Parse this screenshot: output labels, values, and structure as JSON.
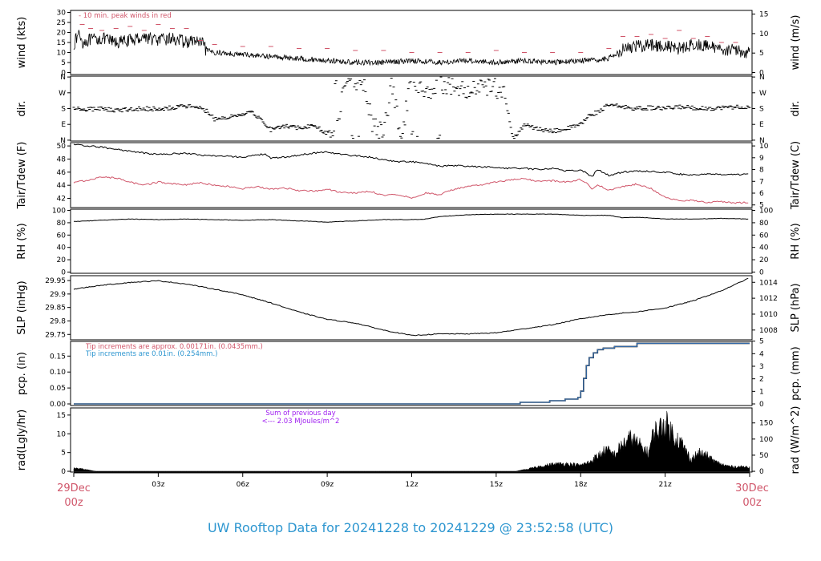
{
  "page": {
    "title": "UW Rooftop Data for 20241228  to  20241229 @ 23:52:58  (UTC)",
    "title_color": "#2d96d0",
    "date_color": "#d0566a"
  },
  "x_axis": {
    "hours": [
      0,
      3,
      6,
      9,
      12,
      15,
      18,
      21,
      24
    ],
    "ticks": [
      "",
      "03z",
      "06z",
      "09z",
      "12z",
      "15z",
      "18z",
      "21z",
      ""
    ],
    "start_date": "29Dec",
    "start_time": "00z",
    "end_date": "30Dec",
    "end_time": "00z"
  },
  "chart_data": [
    {
      "id": "wind",
      "type": "line",
      "left_label": "wind (kts)",
      "right_label": "wind (m/s)",
      "left_ticks": [
        0,
        5,
        10,
        15,
        20,
        25,
        30
      ],
      "right_ticks": [
        0,
        5,
        10,
        15
      ],
      "ylim": [
        -1,
        31
      ],
      "annotation": "- 10 min. peak winds in red",
      "series": [
        {
          "kind": "wind_speed",
          "color": "#000000",
          "x": [
            0,
            0.2,
            0.3,
            0.5,
            1,
            1.5,
            2,
            2.5,
            3,
            3.5,
            4,
            4.3,
            4.6,
            4.7,
            5,
            6,
            7,
            8,
            9,
            10,
            11,
            12,
            13,
            14,
            15,
            16,
            17,
            18,
            18.5,
            19,
            19.5,
            20,
            20.5,
            21,
            21.5,
            22,
            22.5,
            23,
            23.5,
            24
          ],
          "y": [
            14,
            20,
            15,
            16,
            17,
            15,
            16,
            18,
            16,
            17,
            15,
            16,
            14,
            11,
            10,
            9,
            8,
            7,
            6,
            5,
            5,
            6,
            5,
            6,
            5,
            6,
            5,
            6,
            6,
            7,
            12,
            13,
            14,
            13,
            12,
            14,
            13,
            12,
            11,
            10
          ]
        },
        {
          "kind": "peak_gusts",
          "color": "#d0566a",
          "x": [
            0.3,
            0.6,
            1,
            1.5,
            2,
            2.5,
            3,
            3.5,
            4,
            4.5,
            5,
            6,
            7,
            8,
            9,
            10,
            11,
            12,
            13,
            14,
            15,
            16,
            17,
            18,
            19,
            19.5,
            20,
            20.5,
            21,
            21.5,
            22,
            22.5,
            23,
            23.5
          ],
          "y": [
            24,
            22,
            21,
            22,
            23,
            21,
            24,
            22,
            22,
            16,
            14,
            13,
            13,
            12,
            12,
            11,
            11,
            10,
            10,
            10,
            11,
            10,
            10,
            10,
            12,
            18,
            18,
            19,
            17,
            21,
            17,
            18,
            15,
            15
          ]
        }
      ]
    },
    {
      "id": "direction",
      "type": "scatter",
      "left_label": "dir.",
      "right_label": "dir.",
      "left_ticks": [
        "N",
        "E",
        "S",
        "W",
        "N"
      ],
      "right_ticks": [
        "N",
        "E",
        "S",
        "W",
        "N"
      ],
      "ylim": [
        -5,
        365
      ],
      "series": [
        {
          "kind": "wind_direction",
          "color": "#000000",
          "x": [
            0,
            0.5,
            1,
            1.5,
            2,
            2.5,
            3,
            3.5,
            4,
            4.5,
            4.8,
            5,
            5.5,
            6,
            6.3,
            6.5,
            7,
            7.5,
            8,
            8.5,
            9,
            9.3,
            9.6,
            10,
            10.3,
            10.6,
            11,
            11.3,
            11.6,
            12,
            12.5,
            13,
            13.5,
            14,
            14.5,
            15,
            15.3,
            15.6,
            16,
            16.3,
            16.6,
            17,
            17.5,
            18,
            18.3,
            18.6,
            19,
            19.5,
            20,
            20.5,
            21,
            21.5,
            22,
            22.5,
            23,
            23.5,
            24
          ],
          "y": [
            185,
            175,
            180,
            170,
            175,
            180,
            178,
            185,
            195,
            180,
            160,
            120,
            130,
            150,
            165,
            140,
            60,
            80,
            70,
            85,
            40,
            10,
            340,
            350,
            300,
            100,
            20,
            340,
            0,
            355,
            280,
            330,
            300,
            270,
            290,
            300,
            280,
            10,
            90,
            70,
            60,
            50,
            65,
            90,
            140,
            160,
            200,
            190,
            180,
            185,
            180,
            190,
            185,
            180,
            185,
            190,
            185
          ]
        }
      ]
    },
    {
      "id": "temperature",
      "type": "line",
      "left_label": "Tair/Tdew (F)",
      "right_label": "Tair/Tdew (C)",
      "left_ticks": [
        42,
        44,
        46,
        48,
        50
      ],
      "right_ticks": [
        5,
        6,
        7,
        8,
        9,
        10
      ],
      "ylim": [
        40.6,
        50.5
      ],
      "series": [
        {
          "kind": "air_temperature",
          "color": "#000000",
          "x": [
            0,
            0.5,
            1,
            1.5,
            2,
            2.5,
            3,
            3.5,
            4,
            4.5,
            5,
            5.5,
            6,
            6.5,
            6.8,
            7,
            7.5,
            8,
            8.5,
            9,
            9.5,
            10,
            10.5,
            11,
            11.5,
            12,
            12.5,
            13,
            13.5,
            14,
            14.5,
            15,
            15.5,
            16,
            16.5,
            17,
            17.5,
            18,
            18.2,
            18.4,
            18.6,
            19,
            19.5,
            20,
            20.5,
            21,
            21.5,
            22,
            22.5,
            23,
            23.5,
            24
          ],
          "y": [
            50.2,
            50.0,
            49.8,
            49.5,
            49.2,
            48.9,
            48.7,
            48.8,
            48.9,
            48.6,
            48.5,
            48.4,
            48.3,
            48.6,
            48.8,
            48.1,
            48.3,
            48.6,
            48.9,
            49.1,
            48.7,
            48.5,
            48.3,
            47.9,
            47.6,
            47.6,
            47.3,
            46.9,
            47.0,
            46.9,
            46.8,
            46.7,
            46.6,
            46.6,
            46.4,
            46.6,
            46.2,
            46.3,
            45.9,
            45.3,
            46.4,
            45.5,
            46.0,
            46.2,
            46.1,
            46.0,
            45.7,
            45.6,
            45.7,
            45.6,
            45.6,
            45.7
          ]
        },
        {
          "kind": "dew_point",
          "color": "#d0566a",
          "x": [
            0,
            0.5,
            1,
            1.5,
            2,
            2.5,
            3,
            3.5,
            4,
            4.5,
            5,
            5.5,
            6,
            6.5,
            7,
            7.5,
            8,
            8.5,
            9,
            9.5,
            10,
            10.5,
            11,
            11.5,
            12,
            12.5,
            13,
            13.5,
            14,
            14.5,
            15,
            15.5,
            16,
            16.5,
            17,
            17.5,
            18,
            18.2,
            18.4,
            18.6,
            19,
            19.5,
            20,
            20.5,
            21,
            21.5,
            22,
            22.5,
            23,
            23.5,
            24
          ],
          "y": [
            44.4,
            44.8,
            45.3,
            45.1,
            44.5,
            44.0,
            44.5,
            44.2,
            44.1,
            44.4,
            44.0,
            43.8,
            43.5,
            43.8,
            43.4,
            43.6,
            43.2,
            43.1,
            43.4,
            42.9,
            42.8,
            43.1,
            42.5,
            42.6,
            42.1,
            42.8,
            42.6,
            43.4,
            43.8,
            44.1,
            44.5,
            44.8,
            45.0,
            44.6,
            44.7,
            44.5,
            44.9,
            44.3,
            43.5,
            44.1,
            43.2,
            43.8,
            44.2,
            43.5,
            42.2,
            41.6,
            41.7,
            41.4,
            41.5,
            41.3,
            41.4
          ]
        }
      ]
    },
    {
      "id": "humidity",
      "type": "line",
      "left_label": "RH (%)",
      "right_label": "RH (%)",
      "left_ticks": [
        0,
        20,
        40,
        60,
        80,
        100
      ],
      "right_ticks": [
        0,
        20,
        40,
        60,
        80,
        100
      ],
      "ylim": [
        -2,
        102
      ],
      "series": [
        {
          "kind": "relative_humidity",
          "color": "#000000",
          "x": [
            0,
            1,
            2,
            3,
            4,
            5,
            6,
            7,
            8,
            9,
            10,
            11,
            12,
            12.5,
            13,
            14,
            15,
            16,
            17,
            18,
            19,
            19.5,
            20,
            21,
            22,
            23,
            24
          ],
          "y": [
            82,
            84,
            86,
            85,
            86,
            85,
            84,
            85,
            83,
            81,
            83,
            85,
            85,
            86,
            90,
            93,
            94,
            94,
            94,
            92,
            92,
            88,
            89,
            86,
            86,
            87,
            86
          ]
        }
      ]
    },
    {
      "id": "pressure",
      "type": "line",
      "left_label": "SLP (inHg)",
      "right_label": "SLP (hPa)",
      "left_ticks": [
        29.75,
        29.8,
        29.85,
        29.9,
        29.95
      ],
      "right_ticks": [
        1008,
        1010,
        1012,
        1014
      ],
      "ylim": [
        29.73,
        29.968
      ],
      "series": [
        {
          "kind": "sea_level_pressure",
          "color": "#000000",
          "x": [
            0,
            1,
            2,
            3,
            4,
            5,
            6,
            7,
            8,
            9,
            10,
            11,
            12,
            13,
            14,
            15,
            16,
            17,
            18,
            19,
            20,
            21,
            22,
            23,
            24
          ],
          "y": [
            29.918,
            29.933,
            29.943,
            29.949,
            29.937,
            29.918,
            29.897,
            29.867,
            29.833,
            29.806,
            29.792,
            29.766,
            29.746,
            29.752,
            29.752,
            29.756,
            29.771,
            29.786,
            29.808,
            29.824,
            29.834,
            29.848,
            29.875,
            29.912,
            29.96
          ]
        }
      ]
    },
    {
      "id": "precipitation",
      "type": "line",
      "left_label": "pcp. (in)",
      "right_label": "pcp. (mm)",
      "left_ticks": [
        0.0,
        0.05,
        0.1,
        0.15
      ],
      "right_ticks": [
        0,
        1,
        2,
        3,
        4,
        5
      ],
      "ylim": [
        -0.005,
        0.196
      ],
      "annotations": [
        "Tip increments are approx. 0.00171in. (0.0435mm.)",
        "Tip increments are 0.01in. (0.254mm.)"
      ],
      "annotation_colors": [
        "#d0566a",
        "#2d96d0"
      ],
      "series": [
        {
          "kind": "accumulation_black",
          "color": "#000000",
          "x": [
            0,
            15.8,
            15.85,
            16.9,
            17.45,
            17.9,
            18,
            18.1,
            18.2,
            18.3,
            18.45,
            18.6,
            18.8,
            19.2,
            20,
            24
          ],
          "y": [
            0,
            0,
            0.005,
            0.01,
            0.015,
            0.02,
            0.04,
            0.08,
            0.12,
            0.145,
            0.16,
            0.17,
            0.175,
            0.18,
            0.19,
            0.19
          ]
        },
        {
          "kind": "accumulation_blue",
          "color": "#3a78c0",
          "x": [
            0,
            15.8,
            15.85,
            16.9,
            17.45,
            17.9,
            18,
            18.1,
            18.2,
            18.3,
            18.45,
            18.6,
            18.8,
            19.2,
            20,
            24
          ],
          "y": [
            0,
            0,
            0.005,
            0.01,
            0.015,
            0.02,
            0.04,
            0.08,
            0.12,
            0.145,
            0.16,
            0.17,
            0.175,
            0.18,
            0.19,
            0.19
          ]
        }
      ]
    },
    {
      "id": "radiation",
      "type": "area",
      "left_label": "rad(Lgly/hr)",
      "right_label": "rad (W/m^2)",
      "left_ticks": [
        0,
        5,
        10,
        15
      ],
      "right_ticks": [
        0,
        50,
        100,
        150
      ],
      "ylim": [
        -0.2,
        16.9
      ],
      "annotation_lines": [
        "Sum of previous day",
        "<--- 2.03 MJoules/m^2"
      ],
      "annotation_color": "#a020f0",
      "series": [
        {
          "kind": "solar_radiation",
          "color": "#000000",
          "x": [
            0,
            0.3,
            0.5,
            0.7,
            0.8,
            15.7,
            16,
            16.5,
            17,
            17.5,
            18,
            18.3,
            18.6,
            18.9,
            19.2,
            19.5,
            19.8,
            20.1,
            20.4,
            20.6,
            20.8,
            21,
            21.1,
            21.3,
            21.6,
            21.9,
            22.2,
            22.5,
            22.8,
            23.1,
            23.4,
            23.7,
            24
          ],
          "y": [
            1.0,
            0.8,
            0.4,
            0.1,
            0,
            0,
            0.5,
            1.5,
            2.3,
            2.5,
            2.0,
            3.0,
            5.0,
            7.0,
            5.5,
            9.0,
            11.0,
            8.5,
            6.0,
            13.0,
            14.0,
            16.0,
            15.0,
            12.0,
            9.0,
            4.0,
            6.0,
            5.0,
            3.0,
            2.0,
            1.5,
            1.5,
            1.5
          ]
        }
      ]
    }
  ]
}
